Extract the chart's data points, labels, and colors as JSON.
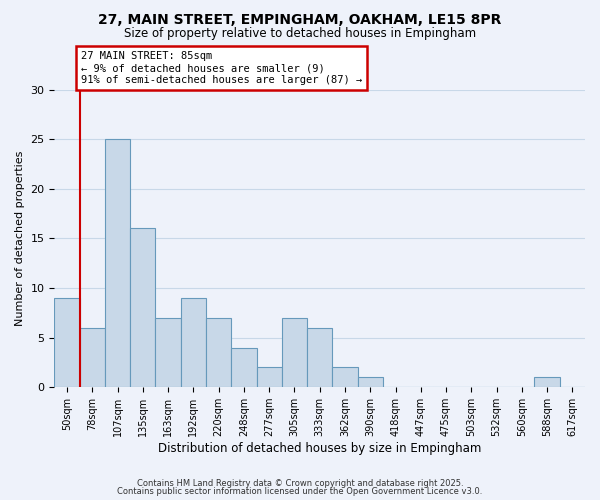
{
  "title": "27, MAIN STREET, EMPINGHAM, OAKHAM, LE15 8PR",
  "subtitle": "Size of property relative to detached houses in Empingham",
  "xlabel": "Distribution of detached houses by size in Empingham",
  "ylabel": "Number of detached properties",
  "bin_labels": [
    "50sqm",
    "78sqm",
    "107sqm",
    "135sqm",
    "163sqm",
    "192sqm",
    "220sqm",
    "248sqm",
    "277sqm",
    "305sqm",
    "333sqm",
    "362sqm",
    "390sqm",
    "418sqm",
    "447sqm",
    "475sqm",
    "503sqm",
    "532sqm",
    "560sqm",
    "588sqm",
    "617sqm"
  ],
  "bar_values": [
    9,
    6,
    25,
    16,
    7,
    9,
    7,
    4,
    2,
    7,
    6,
    2,
    1,
    0,
    0,
    0,
    0,
    0,
    0,
    1,
    0
  ],
  "bar_color": "#c8d8e8",
  "bar_edgecolor": "#6699bb",
  "bar_linewidth": 0.8,
  "grid_color": "#c8d8e8",
  "background_color": "#eef2fa",
  "redline_color": "#cc0000",
  "annotation_text": "27 MAIN STREET: 85sqm\n← 9% of detached houses are smaller (9)\n91% of semi-detached houses are larger (87) →",
  "annotation_box_edgecolor": "#cc0000",
  "ylim": [
    0,
    30
  ],
  "yticks": [
    0,
    5,
    10,
    15,
    20,
    25,
    30
  ],
  "footer_line1": "Contains HM Land Registry data © Crown copyright and database right 2025.",
  "footer_line2": "Contains public sector information licensed under the Open Government Licence v3.0."
}
